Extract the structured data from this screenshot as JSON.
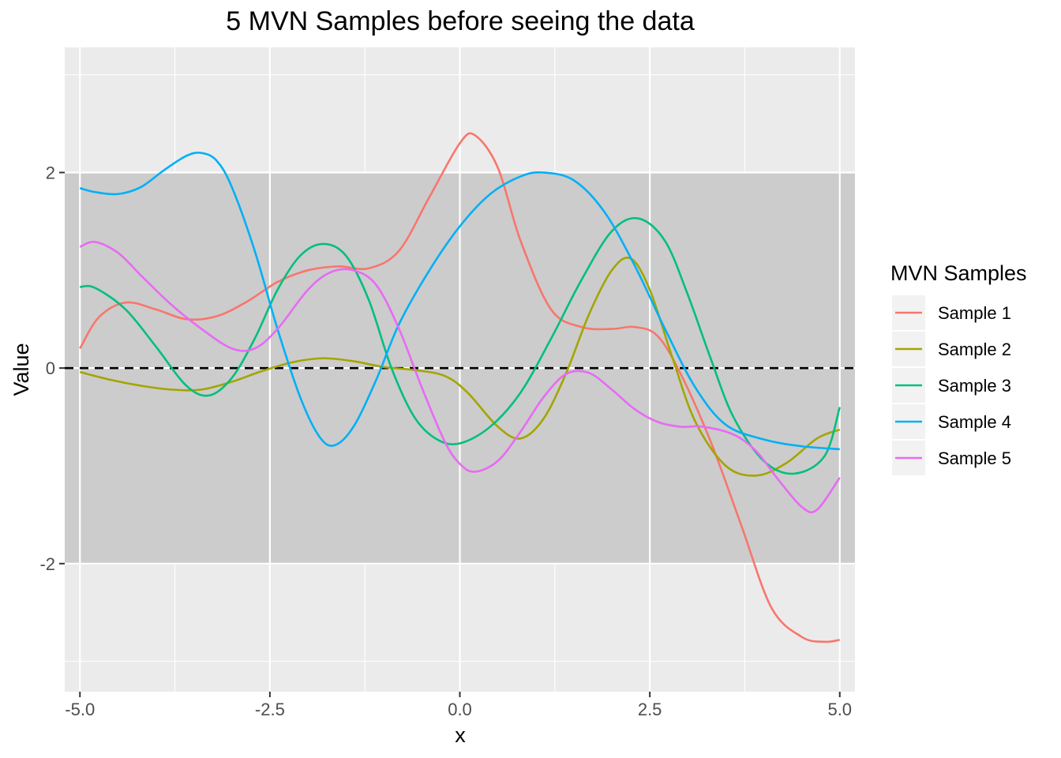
{
  "chart_data": {
    "type": "line",
    "title": "5 MVN Samples before seeing the data",
    "xlabel": "x",
    "ylabel": "Value",
    "xlim": [
      -5.2,
      5.2
    ],
    "ylim": [
      -3.31,
      3.28
    ],
    "x_ticks": [
      -5.0,
      -2.5,
      0.0,
      2.5,
      5.0
    ],
    "x_tick_labels": [
      "-5.0",
      "-2.5",
      "0.0",
      "2.5",
      "5.0"
    ],
    "y_ticks": [
      -2,
      0,
      2
    ],
    "y_tick_labels": [
      "-2",
      "0",
      "2"
    ],
    "band": {
      "ymin": -2,
      "ymax": 2
    },
    "reference_line": {
      "y": 0,
      "style": "dashed"
    },
    "grid": true,
    "legend": {
      "title": "MVN Samples",
      "position": "right"
    },
    "series": [
      {
        "name": "Sample 1",
        "color": "#F8766D",
        "x": [
          -5.0,
          -4.75,
          -4.4,
          -4.0,
          -3.6,
          -3.2,
          -2.8,
          -2.4,
          -2.0,
          -1.6,
          -1.2,
          -0.8,
          -0.4,
          0.0,
          0.2,
          0.5,
          0.8,
          1.2,
          1.6,
          2.0,
          2.3,
          2.6,
          2.9,
          3.3,
          3.7,
          4.1,
          4.5,
          4.8,
          5.0
        ],
        "values": [
          0.2,
          0.52,
          0.67,
          0.6,
          0.5,
          0.53,
          0.68,
          0.88,
          1.0,
          1.04,
          1.02,
          1.2,
          1.75,
          2.3,
          2.38,
          2.05,
          1.3,
          0.6,
          0.42,
          0.4,
          0.42,
          0.33,
          -0.05,
          -0.75,
          -1.6,
          -2.45,
          -2.75,
          -2.8,
          -2.78
        ]
      },
      {
        "name": "Sample 2",
        "color": "#A3A500",
        "x": [
          -5.0,
          -4.6,
          -4.2,
          -3.8,
          -3.4,
          -3.0,
          -2.6,
          -2.2,
          -1.8,
          -1.4,
          -1.0,
          -0.6,
          -0.2,
          0.1,
          0.5,
          0.8,
          1.1,
          1.4,
          1.7,
          2.0,
          2.25,
          2.5,
          2.8,
          3.1,
          3.5,
          3.9,
          4.3,
          4.7,
          5.0
        ],
        "values": [
          -0.04,
          -0.12,
          -0.18,
          -0.22,
          -0.22,
          -0.14,
          -0.03,
          0.06,
          0.1,
          0.07,
          0.01,
          -0.02,
          -0.08,
          -0.25,
          -0.6,
          -0.72,
          -0.52,
          -0.05,
          0.55,
          1.0,
          1.12,
          0.8,
          0.1,
          -0.55,
          -1.0,
          -1.1,
          -0.97,
          -0.72,
          -0.63
        ]
      },
      {
        "name": "Sample 3",
        "color": "#00BF7D",
        "x": [
          -5.0,
          -4.8,
          -4.4,
          -4.0,
          -3.6,
          -3.3,
          -3.0,
          -2.7,
          -2.4,
          -2.1,
          -1.8,
          -1.5,
          -1.2,
          -0.9,
          -0.6,
          -0.3,
          0.0,
          0.4,
          0.8,
          1.2,
          1.6,
          2.0,
          2.35,
          2.7,
          3.0,
          3.3,
          3.6,
          4.0,
          4.4,
          4.8,
          5.0
        ],
        "values": [
          0.83,
          0.82,
          0.6,
          0.22,
          -0.18,
          -0.28,
          -0.1,
          0.3,
          0.8,
          1.15,
          1.27,
          1.15,
          0.7,
          0.0,
          -0.5,
          -0.73,
          -0.77,
          -0.6,
          -0.25,
          0.3,
          0.9,
          1.4,
          1.53,
          1.3,
          0.75,
          0.1,
          -0.5,
          -0.95,
          -1.08,
          -0.9,
          -0.4
        ]
      },
      {
        "name": "Sample 4",
        "color": "#00B0F6",
        "x": [
          -5.0,
          -4.8,
          -4.5,
          -4.2,
          -3.9,
          -3.6,
          -3.4,
          -3.2,
          -3.0,
          -2.7,
          -2.4,
          -2.1,
          -1.85,
          -1.65,
          -1.4,
          -1.1,
          -0.8,
          -0.4,
          0.0,
          0.4,
          0.8,
          1.1,
          1.5,
          1.9,
          2.3,
          2.7,
          3.1,
          3.5,
          4.0,
          4.5,
          5.0
        ],
        "values": [
          1.84,
          1.8,
          1.78,
          1.85,
          2.02,
          2.17,
          2.2,
          2.12,
          1.85,
          1.2,
          0.4,
          -0.3,
          -0.7,
          -0.79,
          -0.6,
          -0.12,
          0.45,
          1.0,
          1.45,
          1.78,
          1.96,
          2.0,
          1.92,
          1.6,
          1.05,
          0.4,
          -0.2,
          -0.58,
          -0.73,
          -0.8,
          -0.83
        ]
      },
      {
        "name": "Sample 5",
        "color": "#E76BF3",
        "x": [
          -5.0,
          -4.8,
          -4.5,
          -4.2,
          -3.8,
          -3.4,
          -3.0,
          -2.7,
          -2.4,
          -2.0,
          -1.7,
          -1.4,
          -1.1,
          -0.8,
          -0.5,
          -0.2,
          0.0,
          0.2,
          0.5,
          0.8,
          1.1,
          1.4,
          1.7,
          2.0,
          2.3,
          2.6,
          2.9,
          3.2,
          3.6,
          3.9,
          4.2,
          4.5,
          4.7,
          5.0
        ],
        "values": [
          1.24,
          1.29,
          1.18,
          0.95,
          0.65,
          0.4,
          0.2,
          0.2,
          0.4,
          0.8,
          0.98,
          1.0,
          0.85,
          0.4,
          -0.2,
          -0.75,
          -0.98,
          -1.06,
          -0.95,
          -0.65,
          -0.3,
          -0.06,
          -0.05,
          -0.22,
          -0.42,
          -0.55,
          -0.6,
          -0.6,
          -0.68,
          -0.85,
          -1.15,
          -1.42,
          -1.45,
          -1.12
        ]
      }
    ]
  }
}
